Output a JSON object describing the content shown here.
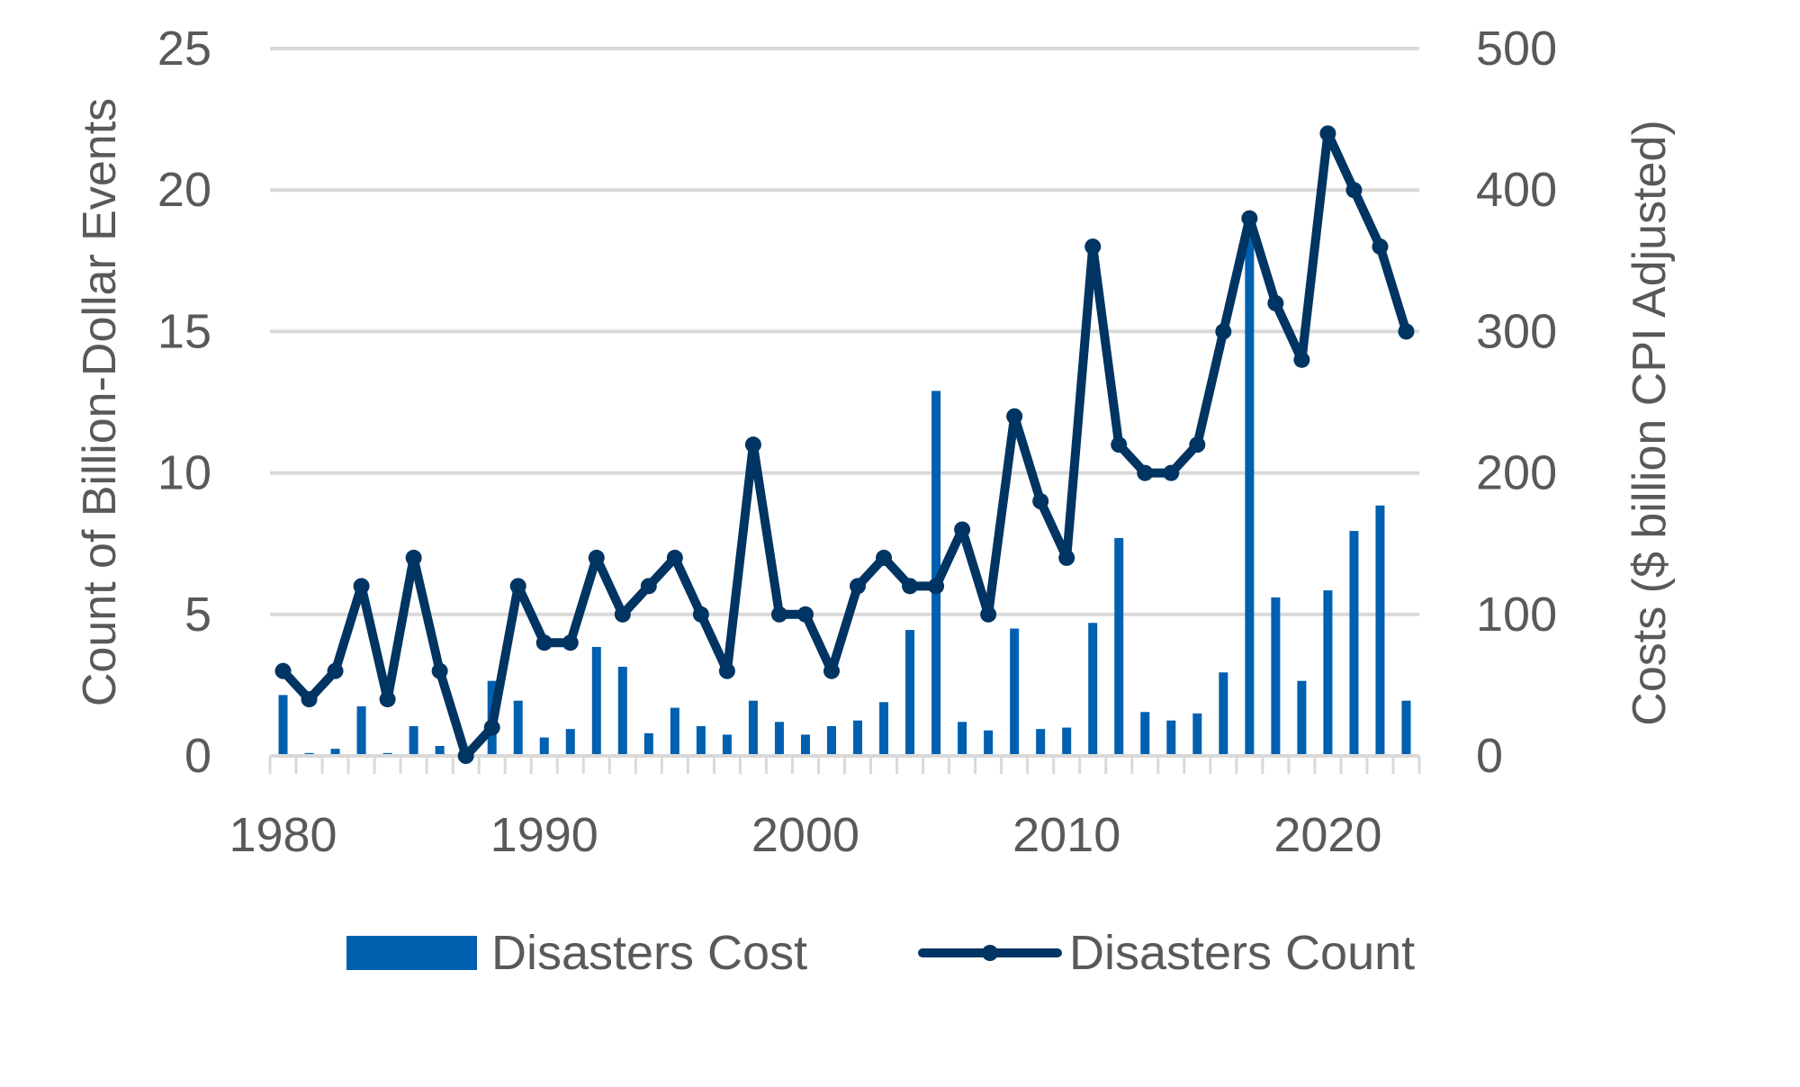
{
  "chart_data": {
    "type": "bar+line",
    "ylabel_left": "Count of Billion-Dollar Events",
    "ylabel_right": "Costs ($ billion CPI Adjusted)",
    "xlabel": "",
    "x": [
      1980,
      1981,
      1982,
      1983,
      1984,
      1985,
      1986,
      1987,
      1988,
      1989,
      1990,
      1991,
      1992,
      1993,
      1994,
      1995,
      1996,
      1997,
      1998,
      1999,
      2000,
      2001,
      2002,
      2003,
      2004,
      2005,
      2006,
      2007,
      2008,
      2009,
      2010,
      2011,
      2012,
      2013,
      2014,
      2015,
      2016,
      2017,
      2018,
      2019,
      2020,
      2021,
      2022,
      2023
    ],
    "xticks": [
      "1980",
      "1990",
      "2000",
      "2010",
      "2020"
    ],
    "ylim_left": [
      0,
      25
    ],
    "yticks_left": [
      "0",
      "5",
      "10",
      "15",
      "20",
      "25"
    ],
    "ylim_right": [
      0,
      500
    ],
    "yticks_right": [
      "0",
      "100",
      "200",
      "300",
      "400",
      "500"
    ],
    "grid": true,
    "legend_position": "bottom",
    "series": [
      {
        "name": "Disasters Cost",
        "type": "bar",
        "axis": "right",
        "color": "#0060B0",
        "values": [
          43,
          2,
          5,
          35,
          2,
          21,
          7,
          1,
          53,
          39,
          13,
          19,
          77,
          63,
          16,
          34,
          21,
          15,
          39,
          24,
          15,
          21,
          25,
          38,
          89,
          258,
          24,
          18,
          90,
          19,
          20,
          94,
          154,
          31,
          25,
          30,
          59,
          375,
          112,
          53,
          117,
          159,
          177,
          39
        ]
      },
      {
        "name": "Disasters Count",
        "type": "line",
        "axis": "left",
        "color": "#003462",
        "values": [
          3,
          2,
          3,
          6,
          2,
          7,
          3,
          0,
          1,
          6,
          4,
          4,
          7,
          5,
          6,
          7,
          5,
          3,
          11,
          5,
          5,
          3,
          6,
          7,
          6,
          6,
          8,
          5,
          12,
          9,
          7,
          18,
          11,
          10,
          10,
          11,
          15,
          19,
          16,
          14,
          22,
          20,
          18,
          15
        ]
      }
    ]
  }
}
